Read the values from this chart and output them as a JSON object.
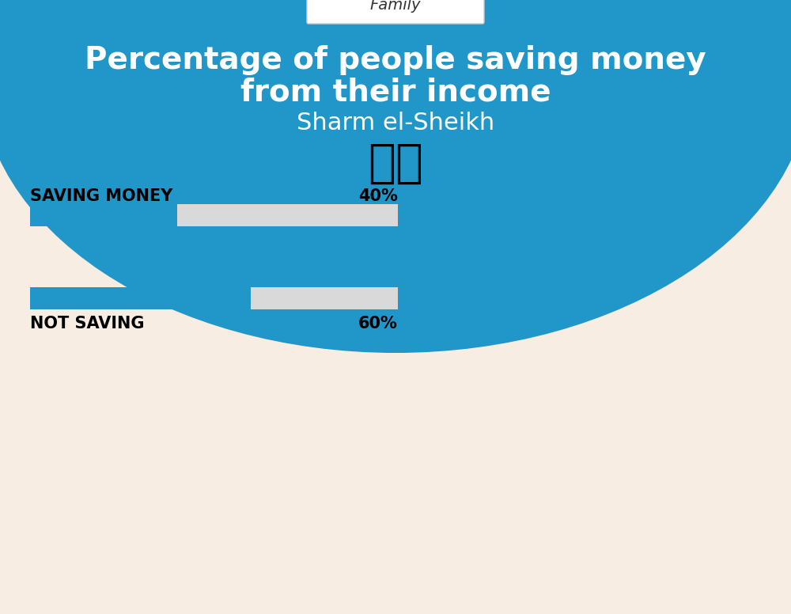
{
  "title_line1": "Percentage of people saving money",
  "title_line2": "from their income",
  "subtitle": "Sharm el-Sheikh",
  "category_label": "Family",
  "bar1_label": "SAVING MONEY",
  "bar1_value": 40,
  "bar1_pct": "40%",
  "bar2_label": "NOT SAVING",
  "bar2_value": 60,
  "bar2_pct": "60%",
  "bar_color": "#2196C9",
  "bar_bg_color": "#D9D9D9",
  "bg_color_top": "#2196C9",
  "bg_color_bottom": "#F7EDE3",
  "title_color": "#FFFFFF",
  "subtitle_color": "#FFFFFF",
  "label_color": "#000000",
  "category_box_color": "#FFFFFF",
  "flag_emoji": "🇪🇬"
}
